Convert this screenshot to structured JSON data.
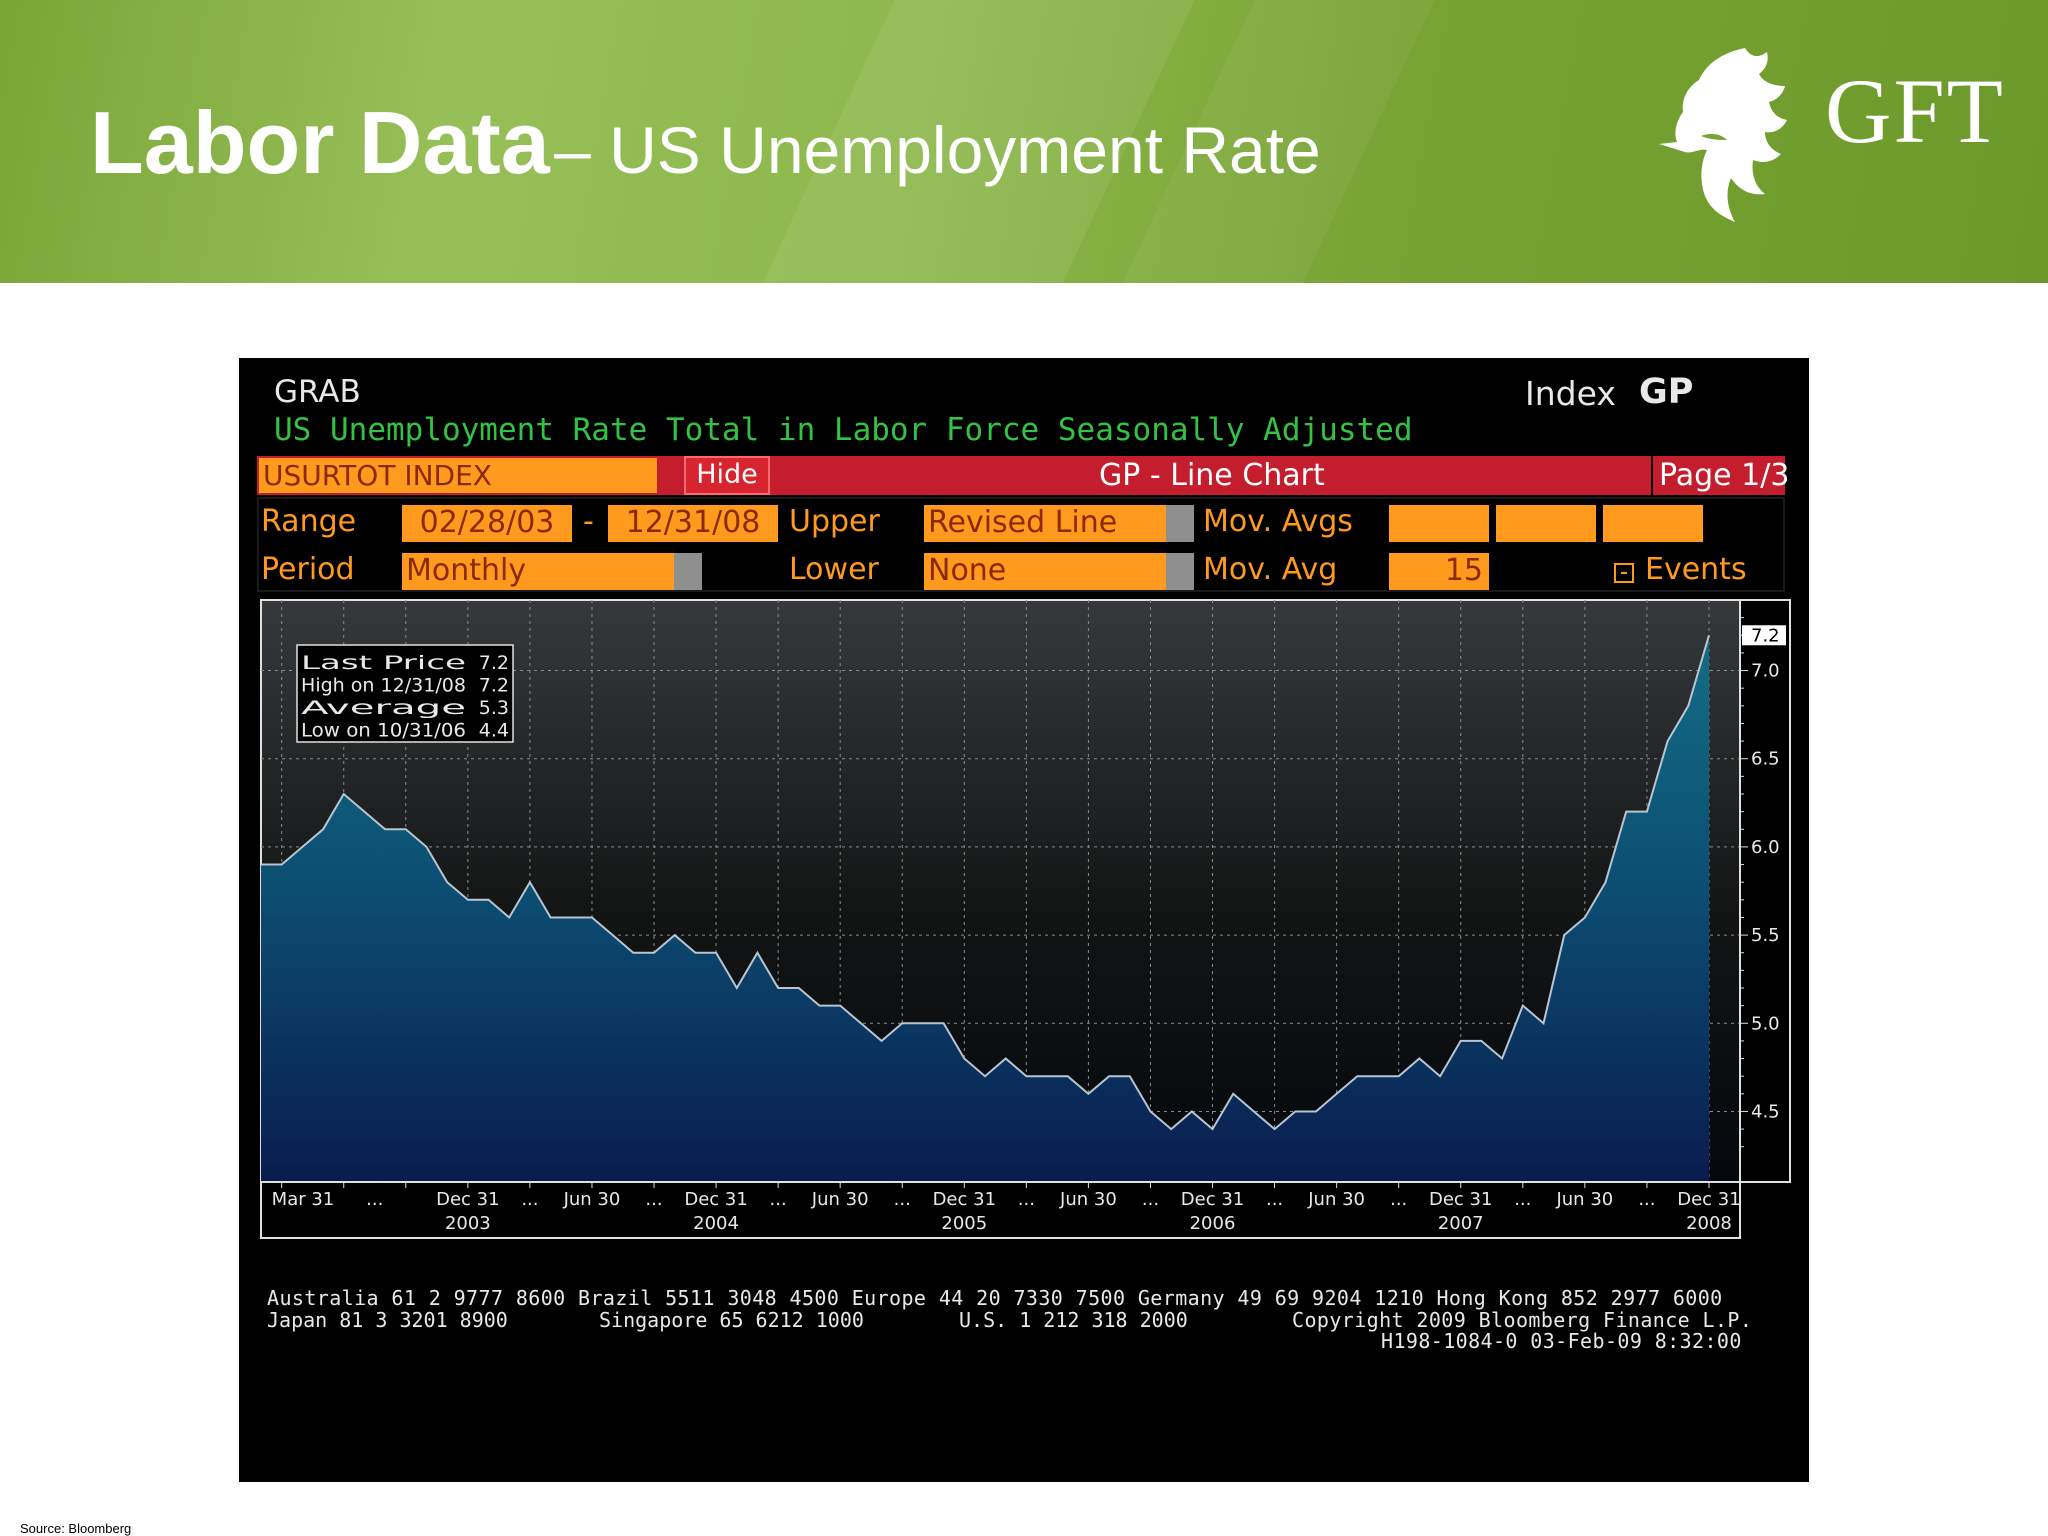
{
  "slide": {
    "title_bold": "Labor Data",
    "title_rest": "– US Unemployment Rate",
    "logo_text": "GFT",
    "source": "Source: Bloomberg"
  },
  "terminal": {
    "grab": "GRAB",
    "index_label": "Index",
    "gp_label": "GP",
    "subtitle": "US Unemployment Rate Total in Labor Force Seasonally Adjusted",
    "ticker": "USURTOT INDEX",
    "hide_button": "Hide",
    "chart_title": "GP - Line Chart",
    "page": "Page 1/3",
    "range_label": "Range",
    "range_start": "02/28/03",
    "range_dash": "-",
    "range_end": "12/31/08",
    "upper_label": "Upper",
    "upper_value": "Revised Line",
    "movavgs_label": "Mov. Avgs",
    "period_label": "Period",
    "period_value": "Monthly",
    "lower_label": "Lower",
    "lower_value": "None",
    "movavg_label": "Mov. Avg",
    "movavg_value": "15",
    "events_label": "Events",
    "footer_line1": "Australia 61 2 9777 8600 Brazil 5511 3048 4500 Europe 44 20 7330 7500 Germany 49 69 9204 1210 Hong Kong 852 2977 6000",
    "footer_line2a": "Japan 81 3 3201 8900",
    "footer_line2b": "Singapore 65 6212 1000",
    "footer_line2c": "U.S. 1 212 318 2000",
    "footer_line2d": "Copyright 2009 Bloomberg Finance L.P.",
    "footer_line3": "H198-1084-0 03-Feb-09  8:32:00"
  },
  "colors": {
    "terminal_orange": "#ff9a1f",
    "terminal_green": "#33c244",
    "terminal_red": "#c41e2e",
    "series_fill_top": "#136d84",
    "series_fill_bottom": "#091c4e"
  },
  "chart_data": {
    "type": "area",
    "title": "US Unemployment Rate Total in Labor Force Seasonally Adjusted",
    "ylim": [
      4.1,
      7.4
    ],
    "yticks": [
      "4.5",
      "5.0",
      "5.5",
      "6.0",
      "6.5",
      "7.0"
    ],
    "last_price_tag": "7.2",
    "grid": true,
    "x_tick_labels": [
      {
        "label": "Mar 31",
        "year": ""
      },
      {
        "label": "Dec 31",
        "year": "2003"
      },
      {
        "label": "Jun 30",
        "year": ""
      },
      {
        "label": "Dec 31",
        "year": "2004"
      },
      {
        "label": "Jun 30",
        "year": ""
      },
      {
        "label": "Dec 31",
        "year": "2005"
      },
      {
        "label": "Jun 30",
        "year": ""
      },
      {
        "label": "Dec 31",
        "year": "2006"
      },
      {
        "label": "Jun 30",
        "year": ""
      },
      {
        "label": "Dec 31",
        "year": "2007"
      },
      {
        "label": "Jun 30",
        "year": ""
      },
      {
        "label": "Dec 31",
        "year": "2008"
      }
    ],
    "x_tick_months": [
      "2003-03",
      "2003-12",
      "2004-06",
      "2004-12",
      "2005-06",
      "2005-12",
      "2006-06",
      "2006-12",
      "2007-06",
      "2007-12",
      "2008-06",
      "2008-12"
    ],
    "legend": [
      {
        "label": "Last Price",
        "value": "7.2"
      },
      {
        "label": "High on 12/31/08",
        "value": "7.2"
      },
      {
        "label": "Average",
        "value": "5.3"
      },
      {
        "label": "Low on 10/31/06",
        "value": "4.4"
      }
    ],
    "legend_position": "top-left",
    "series": [
      {
        "name": "USURTOT INDEX",
        "start_month": "2003-02",
        "values": [
          5.9,
          5.9,
          6.0,
          6.1,
          6.3,
          6.2,
          6.1,
          6.1,
          6.0,
          5.8,
          5.7,
          5.7,
          5.6,
          5.8,
          5.6,
          5.6,
          5.6,
          5.5,
          5.4,
          5.4,
          5.5,
          5.4,
          5.4,
          5.2,
          5.4,
          5.2,
          5.2,
          5.1,
          5.1,
          5.0,
          4.9,
          5.0,
          5.0,
          5.0,
          4.8,
          4.7,
          4.8,
          4.7,
          4.7,
          4.7,
          4.6,
          4.7,
          4.7,
          4.5,
          4.4,
          4.5,
          4.4,
          4.6,
          4.5,
          4.4,
          4.5,
          4.5,
          4.6,
          4.7,
          4.7,
          4.7,
          4.8,
          4.7,
          4.9,
          4.9,
          4.8,
          5.1,
          5.0,
          5.5,
          5.6,
          5.8,
          6.2,
          6.2,
          6.6,
          6.8,
          7.2
        ]
      }
    ]
  }
}
